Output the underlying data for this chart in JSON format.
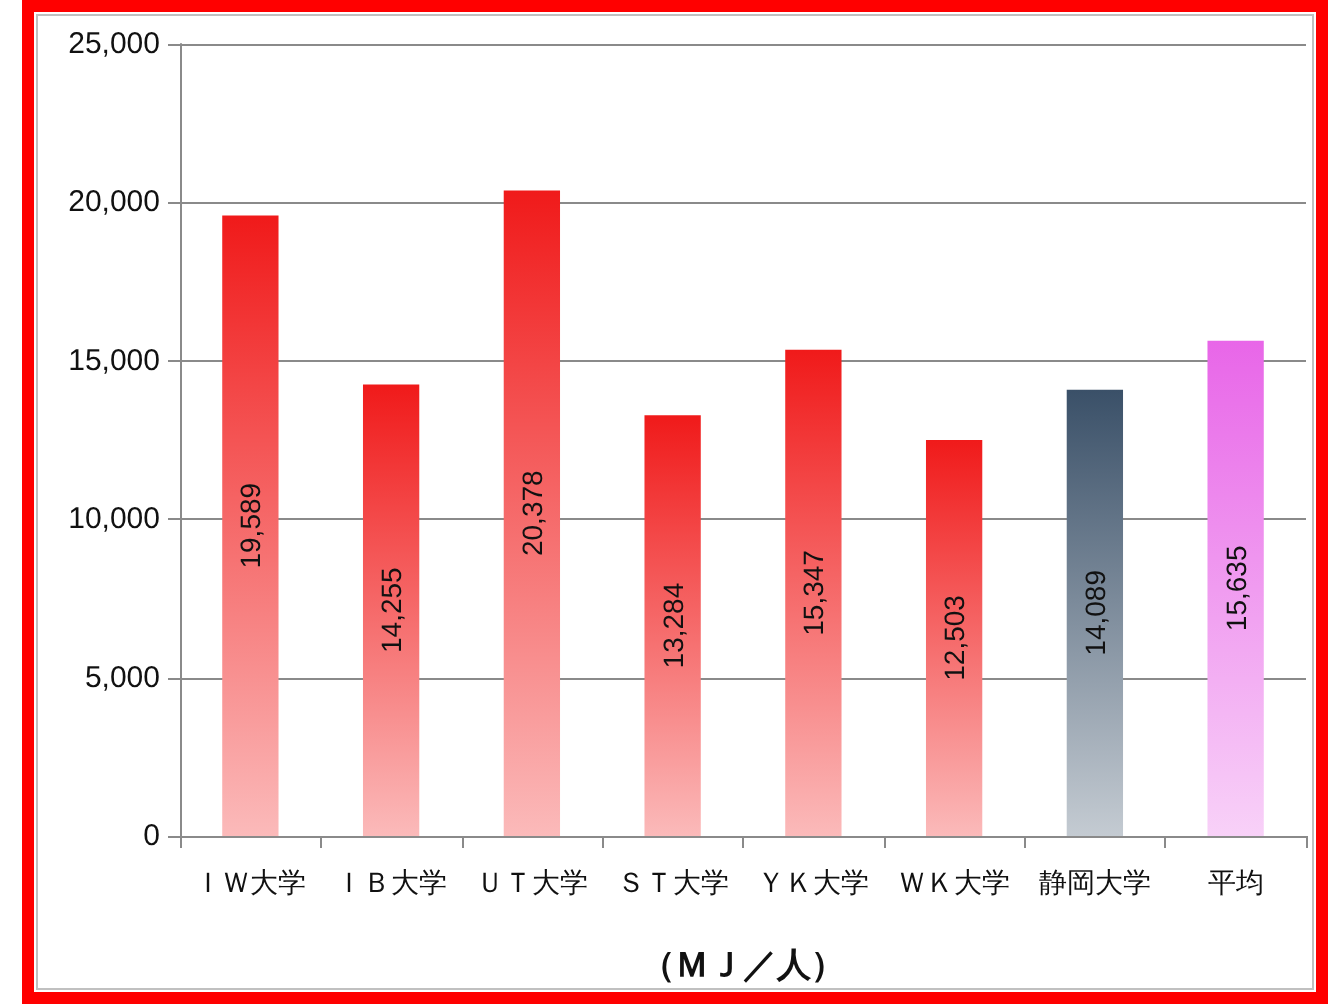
{
  "chart_data": {
    "type": "bar",
    "xlabel": "（ＭＪ／人）",
    "categories": [
      "ＩＷ大学",
      "ＩＢ大学",
      "ＵＴ大学",
      "ＳＴ大学",
      "ＹＫ大学",
      "ＷＫ大学",
      "静岡大学",
      "平均"
    ],
    "values": [
      19589,
      14255,
      20378,
      13284,
      15347,
      12503,
      14089,
      15635
    ],
    "value_labels": [
      "19,589",
      "14,255",
      "20,378",
      "13,284",
      "15,347",
      "12,503",
      "14,089",
      "15,635"
    ],
    "colors": [
      "#f01a1a",
      "#f01a1a",
      "#f01a1a",
      "#f01a1a",
      "#f01a1a",
      "#f01a1a",
      "#3a5068",
      "#e866e8"
    ],
    "ylim": [
      0,
      25000
    ],
    "yticks": [
      {
        "value": 0,
        "label": "0"
      },
      {
        "value": 5000,
        "label": "5,000"
      },
      {
        "value": 10000,
        "label": "10,000"
      },
      {
        "value": 15000,
        "label": "15,000"
      },
      {
        "value": 20000,
        "label": "20,000"
      },
      {
        "value": 25000,
        "label": "25,000"
      }
    ],
    "grid": "y"
  }
}
